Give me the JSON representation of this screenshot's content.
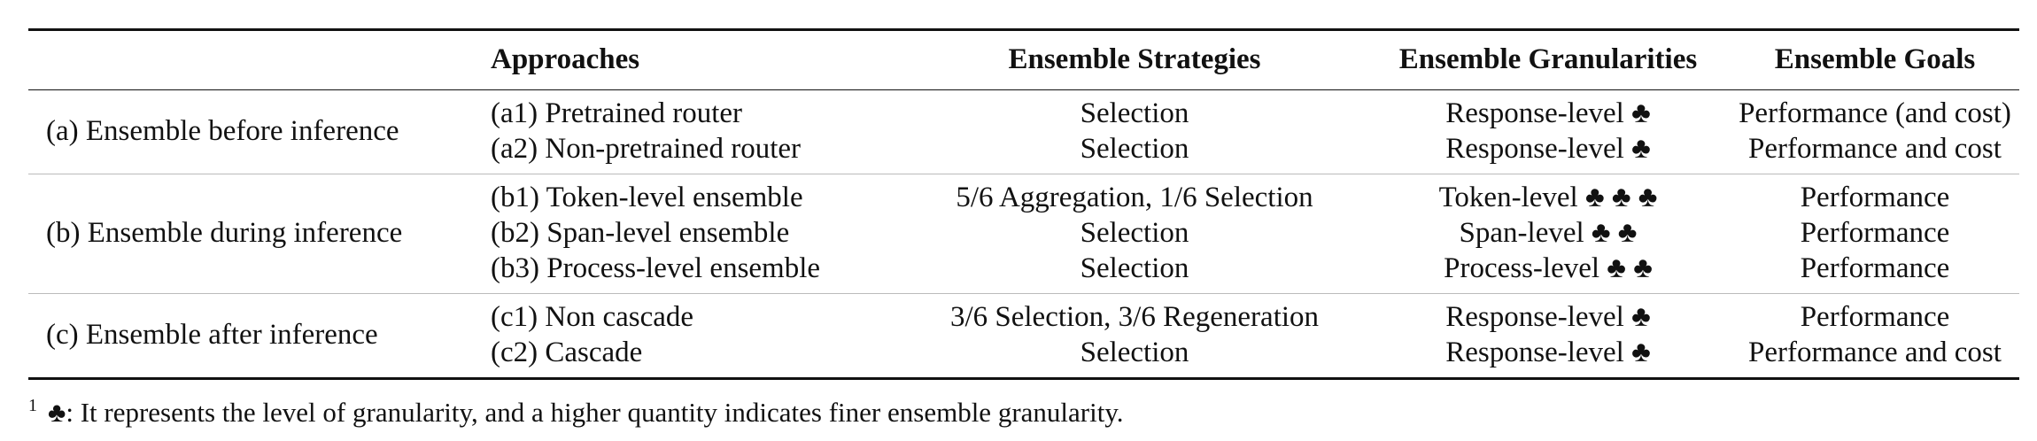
{
  "headers": [
    "",
    "Approaches",
    "Ensemble Strategies",
    "Ensemble Granularities",
    "Ensemble Goals"
  ],
  "groups": [
    {
      "category": "(a) Ensemble before inference",
      "rows": [
        {
          "approach": "(a1) Pretrained router",
          "strategy": "Selection",
          "granularity": "Response-level ♣",
          "goal": "Performance (and cost)"
        },
        {
          "approach": "(a2) Non-pretrained router",
          "strategy": "Selection",
          "granularity": "Response-level ♣",
          "goal": "Performance and cost"
        }
      ]
    },
    {
      "category": "(b) Ensemble during inference",
      "rows": [
        {
          "approach": "(b1) Token-level ensemble",
          "strategy": "5/6 Aggregation, 1/6 Selection",
          "granularity": "Token-level ♣ ♣ ♣",
          "goal": "Performance"
        },
        {
          "approach": "(b2) Span-level ensemble",
          "strategy": "Selection",
          "granularity": "Span-level ♣ ♣",
          "goal": "Performance"
        },
        {
          "approach": "(b3) Process-level ensemble",
          "strategy": "Selection",
          "granularity": "Process-level ♣ ♣",
          "goal": "Performance"
        }
      ]
    },
    {
      "category": "(c) Ensemble after inference",
      "rows": [
        {
          "approach": "(c1) Non cascade",
          "strategy": "3/6 Selection, 3/6 Regeneration",
          "granularity": "Response-level ♣",
          "goal": "Performance"
        },
        {
          "approach": "(c2) Cascade",
          "strategy": "Selection",
          "granularity": "Response-level ♣",
          "goal": "Performance and cost"
        }
      ]
    }
  ],
  "footnote": {
    "marker": "1",
    "text": "♣: It represents the level of granularity, and a higher quantity indicates finer ensemble granularity."
  }
}
